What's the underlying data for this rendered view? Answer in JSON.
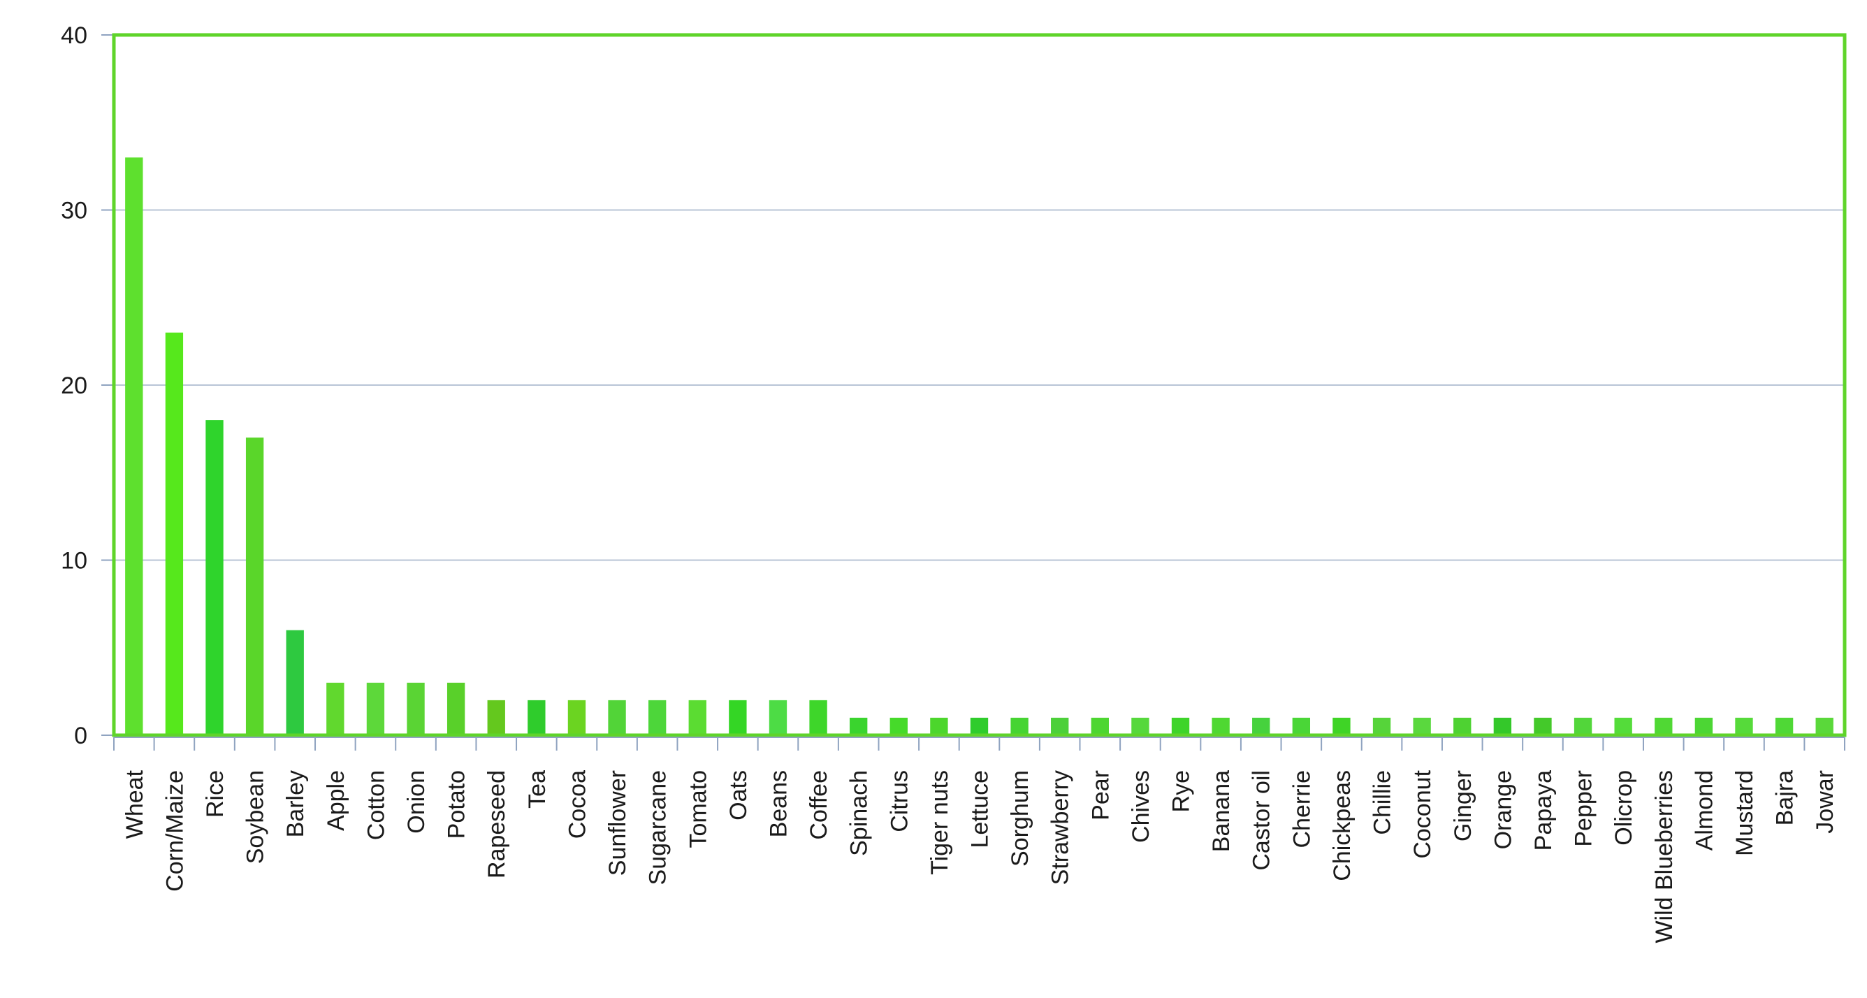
{
  "chart_data": {
    "type": "bar",
    "title": "",
    "xlabel": "",
    "ylabel": "",
    "ylim": [
      0,
      40
    ],
    "yticks": [
      0,
      10,
      20,
      30,
      40
    ],
    "grid": true,
    "legend": "none",
    "colors": {
      "frame": "#5fd42a",
      "grid": "#b8c4d6",
      "axis": "#8fa3c0",
      "bars": [
        "#5ee02e",
        "#56e81c",
        "#2fd42c",
        "#5ad62a",
        "#2ec940",
        "#61d82e",
        "#5dd83a",
        "#5ad434",
        "#59d02a",
        "#64c81e",
        "#2fcc2c",
        "#6bd421",
        "#52d438",
        "#4dd63a",
        "#5bdc32",
        "#34d625",
        "#4ddc45",
        "#3ed62a",
        "#3ad42e",
        "#46da2a",
        "#4cd62c",
        "#2fcc2c",
        "#46d432",
        "#4cd03a",
        "#4dd631",
        "#56d83c",
        "#3ed42a",
        "#4fd832",
        "#46d23d",
        "#4ad637",
        "#3fd426",
        "#56d43a",
        "#5ad83e",
        "#4ed232",
        "#34c82a",
        "#44c92a",
        "#52d63a",
        "#54dc3a",
        "#50d834",
        "#4cd634",
        "#56da3a",
        "#4fd836",
        "#5ad83a"
      ]
    },
    "categories": [
      "Wheat",
      "Corn/Maize",
      "Rice",
      "Soybean",
      "Barley",
      "Apple",
      "Cotton",
      "Onion",
      "Potato",
      "Rapeseed",
      "Tea",
      "Cocoa",
      "Sunflower",
      "Sugarcane",
      "Tomato",
      "Oats",
      "Beans",
      "Coffee",
      "Spinach",
      "Citrus",
      "Tiger nuts",
      "Lettuce",
      "Sorghum",
      "Strawberry",
      "Pear",
      "Chives",
      "Rye",
      "Banana",
      "Castor oil",
      "Cherrie",
      "Chickpeas",
      "Chillie",
      "Coconut",
      "Ginger",
      "Orange",
      "Papaya",
      "Pepper",
      "Olicrop",
      "Wild Blueberries",
      "Almond",
      "Mustard",
      "Bajra",
      "Jowar"
    ],
    "values": [
      33,
      23,
      18,
      17,
      6,
      3,
      3,
      3,
      3,
      2,
      2,
      2,
      2,
      2,
      2,
      2,
      2,
      2,
      1,
      1,
      1,
      1,
      1,
      1,
      1,
      1,
      1,
      1,
      1,
      1,
      1,
      1,
      1,
      1,
      1,
      1,
      1,
      1,
      1,
      1,
      1,
      1,
      1
    ]
  }
}
